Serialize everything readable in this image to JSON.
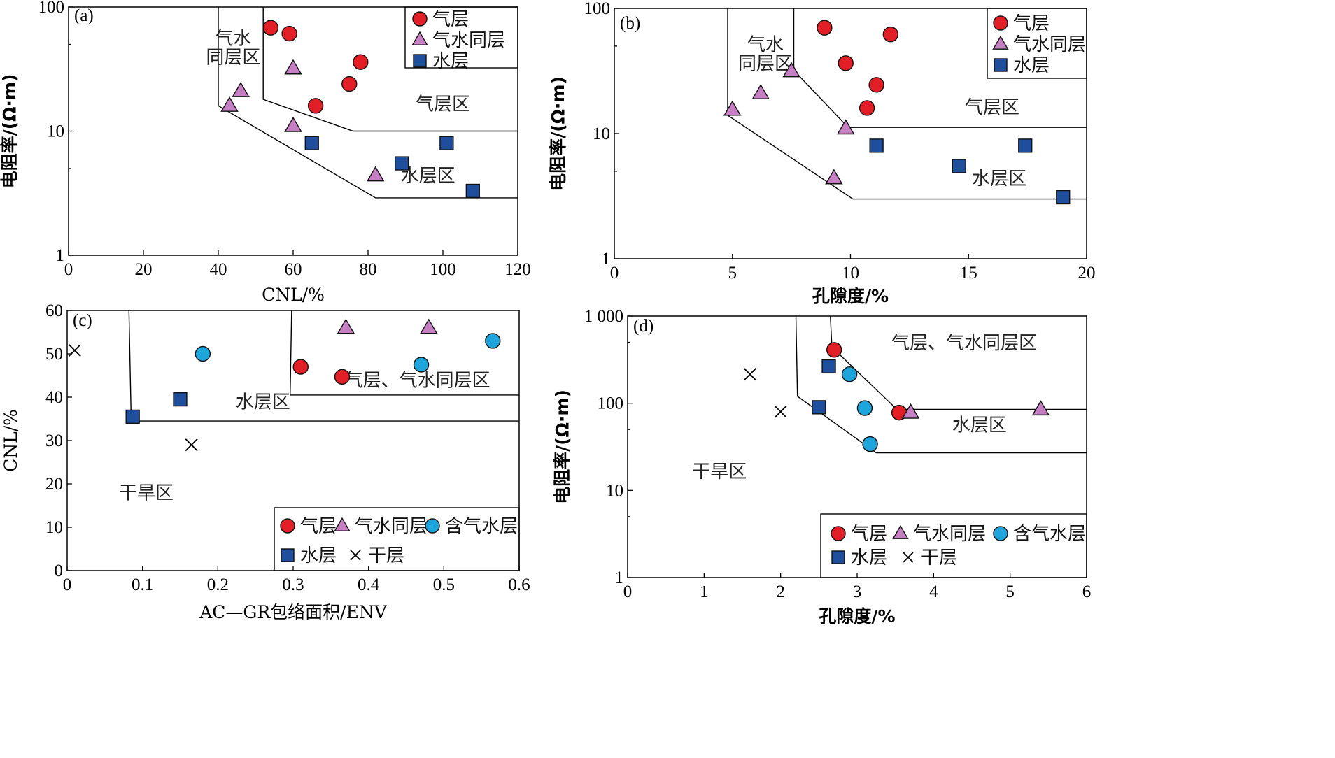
{
  "colors": {
    "gas": "#e21e26",
    "gas_water": "#c77fc4",
    "water": "#1f4e9c",
    "gas_bearing_water": "#1ea6dc",
    "dry": "#000000"
  },
  "marker_icons": {
    "gas": "red-circle",
    "gas_water": "purple-triangle",
    "water": "blue-square",
    "gas_bearing_water": "cyan-circle",
    "dry": "cross"
  },
  "chart_data": [
    {
      "type": "scatter",
      "panel": "(a)",
      "xlabel": "CNL/%",
      "ylabel": "电阻率/(Ω·m)",
      "xlim": [
        0,
        120
      ],
      "ylim": [
        1,
        100
      ],
      "yscale": "log",
      "x_ticks": [
        "0",
        "20",
        "40",
        "60",
        "80",
        "100",
        "120"
      ],
      "y_ticks": [
        {
          "v": 1,
          "label": "1"
        },
        {
          "v": 10,
          "label": "10"
        },
        {
          "v": 100,
          "label": "100"
        }
      ],
      "legend": [
        {
          "key": "gas",
          "label": "气层"
        },
        {
          "key": "gas_water",
          "label": "气水同层"
        },
        {
          "key": "water",
          "label": "水层"
        }
      ],
      "regions": [
        {
          "label": "气水\n同层区",
          "x": 44,
          "y": 50
        },
        {
          "label": "气层区",
          "x": 100,
          "y": 14.8
        },
        {
          "label": "水层区",
          "x": 96,
          "y": 3.9
        }
      ],
      "boundaries": [
        [
          [
            40,
            100
          ],
          [
            40,
            16
          ],
          [
            82,
            2.9
          ],
          [
            120,
            2.9
          ]
        ],
        [
          [
            52,
            100
          ],
          [
            52,
            18
          ],
          [
            76,
            10
          ],
          [
            120,
            10
          ]
        ]
      ],
      "series": [
        {
          "key": "gas",
          "points": [
            [
              54,
              68
            ],
            [
              59,
              61
            ],
            [
              66,
              16
            ],
            [
              75,
              24
            ],
            [
              78,
              36
            ]
          ]
        },
        {
          "key": "gas_water",
          "points": [
            [
              43,
              16
            ],
            [
              46,
              21
            ],
            [
              60,
              32
            ],
            [
              60,
              11
            ],
            [
              82,
              4.4
            ]
          ]
        },
        {
          "key": "water",
          "points": [
            [
              65,
              8
            ],
            [
              89,
              5.5
            ],
            [
              101,
              8
            ],
            [
              108,
              3.3
            ]
          ]
        }
      ]
    },
    {
      "type": "scatter",
      "panel": "(b)",
      "xlabel": "孔隙度/%",
      "ylabel": "电阻率/(Ω·m)",
      "xlim": [
        0,
        20
      ],
      "ylim": [
        1,
        100
      ],
      "yscale": "log",
      "x_ticks": [
        "0",
        "5",
        "10",
        "15",
        "20"
      ],
      "y_ticks": [
        {
          "v": 1,
          "label": "1"
        },
        {
          "v": 10,
          "label": "10"
        },
        {
          "v": 100,
          "label": "100"
        }
      ],
      "legend": [
        {
          "key": "gas",
          "label": "气层"
        },
        {
          "key": "gas_water",
          "label": "气水同层"
        },
        {
          "key": "water",
          "label": "水层"
        }
      ],
      "regions": [
        {
          "label": "气水\n同层区",
          "x": 6.4,
          "y": 46
        },
        {
          "label": "气层区",
          "x": 16,
          "y": 14.5
        },
        {
          "label": "水层区",
          "x": 16.3,
          "y": 3.9
        }
      ],
      "boundaries": [
        [
          [
            4.8,
            100
          ],
          [
            4.8,
            14
          ],
          [
            10.1,
            3
          ],
          [
            20,
            3
          ]
        ],
        [
          [
            7.6,
            100
          ],
          [
            7.6,
            32
          ],
          [
            9.9,
            11.2
          ],
          [
            20,
            11.2
          ]
        ]
      ],
      "series": [
        {
          "key": "gas",
          "points": [
            [
              8.9,
              70
            ],
            [
              9.8,
              36.5
            ],
            [
              10.7,
              16
            ],
            [
              11.1,
              24.5
            ],
            [
              11.7,
              62
            ]
          ]
        },
        {
          "key": "gas_water",
          "points": [
            [
              5.0,
              15.5
            ],
            [
              6.2,
              21
            ],
            [
              7.5,
              31.5
            ],
            [
              9.8,
              11
            ],
            [
              9.3,
              4.4
            ]
          ]
        },
        {
          "key": "water",
          "points": [
            [
              11.1,
              8
            ],
            [
              14.6,
              5.5
            ],
            [
              17.4,
              8
            ],
            [
              19.0,
              3.1
            ]
          ]
        }
      ]
    },
    {
      "type": "scatter",
      "panel": "(c)",
      "xlabel": "AC—GR包络面积/ENV",
      "ylabel": "CNL/%",
      "xlim": [
        0,
        0.6
      ],
      "ylim": [
        0,
        60
      ],
      "yscale": "linear",
      "x_ticks": [
        "0",
        "0.1",
        "0.2",
        "0.3",
        "0.4",
        "0.5",
        "0.6"
      ],
      "y_ticks": [
        {
          "v": 0,
          "label": "0"
        },
        {
          "v": 10,
          "label": "10"
        },
        {
          "v": 20,
          "label": "20"
        },
        {
          "v": 30,
          "label": "30"
        },
        {
          "v": 40,
          "label": "40"
        },
        {
          "v": 50,
          "label": "50"
        },
        {
          "v": 60,
          "label": "60"
        }
      ],
      "legend": [
        {
          "key": "gas",
          "label": "气层"
        },
        {
          "key": "gas_water",
          "label": "气水同层"
        },
        {
          "key": "gas_bearing_water",
          "label": "含气水层"
        },
        {
          "key": "water",
          "label": "水层"
        },
        {
          "key": "dry",
          "label": "干层"
        }
      ],
      "regions": [
        {
          "label": "气层、气水同层区",
          "x": 0.465,
          "y": 42.5
        },
        {
          "label": "水层区",
          "x": 0.26,
          "y": 37.5
        },
        {
          "label": "干旱区",
          "x": 0.105,
          "y": 16.5
        }
      ],
      "boundaries": [
        [
          [
            0.082,
            60
          ],
          [
            0.085,
            34.5
          ],
          [
            0.6,
            34.5
          ]
        ],
        [
          [
            0.298,
            60
          ],
          [
            0.296,
            40.5
          ],
          [
            0.6,
            40.5
          ]
        ]
      ],
      "series": [
        {
          "key": "gas",
          "points": [
            [
              0.31,
              47
            ],
            [
              0.365,
              44.7
            ]
          ]
        },
        {
          "key": "gas_water",
          "points": [
            [
              0.37,
              56
            ],
            [
              0.48,
              56
            ]
          ]
        },
        {
          "key": "gas_bearing_water",
          "points": [
            [
              0.18,
              50
            ],
            [
              0.47,
              47.5
            ],
            [
              0.565,
              53
            ]
          ]
        },
        {
          "key": "water",
          "points": [
            [
              0.087,
              35.5
            ],
            [
              0.15,
              39.5
            ]
          ]
        },
        {
          "key": "dry",
          "points": [
            [
              0.01,
              50.8
            ],
            [
              0.165,
              29
            ]
          ]
        }
      ]
    },
    {
      "type": "scatter",
      "panel": "(d)",
      "xlabel": "孔隙度/%",
      "ylabel": "电阻率/(Ω·m)",
      "xlim": [
        0,
        6
      ],
      "ylim": [
        1,
        1000
      ],
      "yscale": "log",
      "x_ticks": [
        "0",
        "1",
        "2",
        "3",
        "4",
        "5",
        "6"
      ],
      "y_ticks": [
        {
          "v": 1,
          "label": "1"
        },
        {
          "v": 10,
          "label": "10"
        },
        {
          "v": 100,
          "label": "100"
        },
        {
          "v": 1000,
          "label": "1 000"
        }
      ],
      "legend": [
        {
          "key": "gas",
          "label": "气层"
        },
        {
          "key": "gas_water",
          "label": "气水同层"
        },
        {
          "key": "gas_bearing_water",
          "label": "含气水层"
        },
        {
          "key": "water",
          "label": "水层"
        },
        {
          "key": "dry",
          "label": "干层"
        }
      ],
      "regions": [
        {
          "label": "气层、气水同层区",
          "x": 4.4,
          "y": 420
        },
        {
          "label": "水层区",
          "x": 4.6,
          "y": 48
        },
        {
          "label": "干旱区",
          "x": 1.2,
          "y": 14
        }
      ],
      "boundaries": [
        [
          [
            2.2,
            1000
          ],
          [
            2.22,
            120
          ],
          [
            3.25,
            27
          ],
          [
            6,
            27
          ]
        ],
        [
          [
            2.65,
            1000
          ],
          [
            2.67,
            440
          ],
          [
            3.52,
            85
          ],
          [
            6,
            85
          ]
        ]
      ],
      "series": [
        {
          "key": "gas",
          "points": [
            [
              2.7,
              410
            ],
            [
              3.55,
              78
            ]
          ]
        },
        {
          "key": "gas_water",
          "points": [
            [
              3.7,
              78
            ],
            [
              5.4,
              85
            ]
          ]
        },
        {
          "key": "gas_bearing_water",
          "points": [
            [
              2.9,
              215
            ],
            [
              3.1,
              88
            ],
            [
              3.17,
              34
            ]
          ]
        },
        {
          "key": "water",
          "points": [
            [
              2.63,
              265
            ],
            [
              2.5,
              90
            ]
          ]
        },
        {
          "key": "dry",
          "points": [
            [
              1.6,
              215
            ],
            [
              2.0,
              80
            ]
          ]
        }
      ]
    }
  ]
}
